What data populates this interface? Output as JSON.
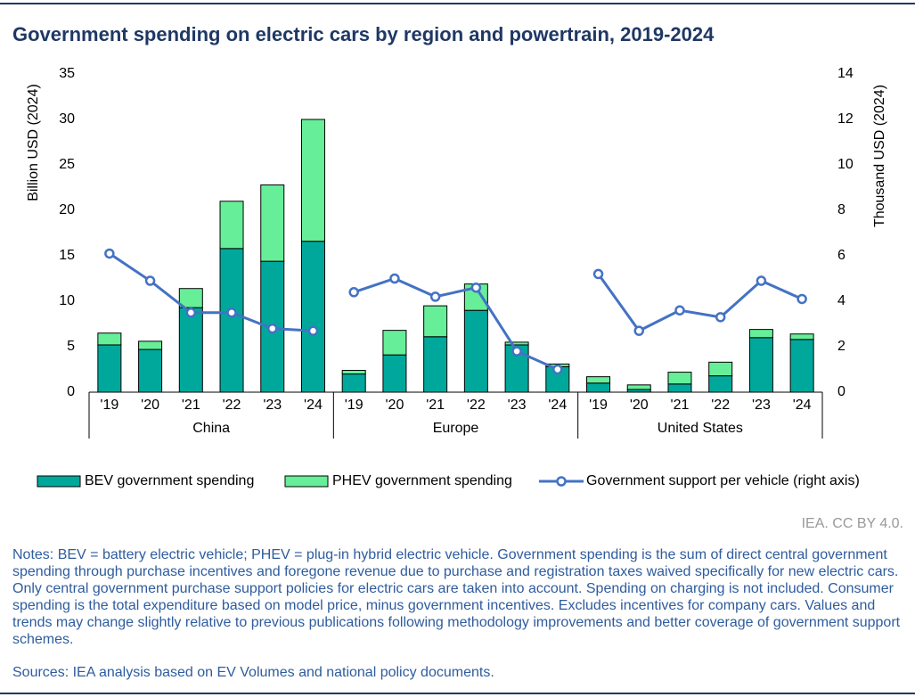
{
  "chart_data": {
    "type": "bar",
    "title": "Government spending on electric cars by region and powertrain, 2019-2024",
    "y_label": "Billion USD (2024)",
    "y2_label": "Thousand USD (2024)",
    "categories": [
      "'19",
      "'20",
      "'21",
      "'22",
      "'23",
      "'24",
      "'19",
      "'20",
      "'21",
      "'22",
      "'23",
      "'24",
      "'19",
      "'20",
      "'21",
      "'22",
      "'23",
      "'24"
    ],
    "groups": [
      "China",
      "Europe",
      "United States"
    ],
    "series": [
      {
        "name": "BEV government spending",
        "type": "bar",
        "color": "#00a89c",
        "values": [
          5.2,
          4.7,
          9.3,
          15.8,
          14.4,
          16.6,
          2.0,
          4.1,
          6.1,
          9.0,
          5.2,
          2.8,
          1.0,
          0.3,
          0.9,
          1.8,
          6.0,
          5.8
        ]
      },
      {
        "name": "PHEV government spending",
        "type": "bar",
        "color": "#66ee99",
        "values": [
          1.3,
          0.9,
          2.1,
          5.2,
          8.4,
          13.4,
          0.4,
          2.7,
          3.4,
          2.9,
          0.3,
          0.3,
          0.7,
          0.5,
          1.3,
          1.5,
          0.9,
          0.6
        ]
      },
      {
        "name": "Government support per vehicle (right axis)",
        "type": "line",
        "axis": "y2",
        "color": "#4472c4",
        "values": [
          6.1,
          4.9,
          3.5,
          3.5,
          2.8,
          2.7,
          4.4,
          5.0,
          4.2,
          4.6,
          1.8,
          1.0,
          5.2,
          2.7,
          3.6,
          3.3,
          4.9,
          4.1
        ]
      }
    ],
    "ylim": [
      0,
      35
    ],
    "yticks": [
      0,
      5,
      10,
      15,
      20,
      25,
      30,
      35
    ],
    "y2lim": [
      0,
      14
    ],
    "y2ticks": [
      0,
      2,
      4,
      6,
      8,
      10,
      12,
      14
    ],
    "legend": "bottom",
    "source": "IEA. CC BY 4.0.",
    "notes": "Notes: BEV = battery electric vehicle; PHEV = plug-in hybrid electric vehicle. Government spending is the sum of direct central government spending through purchase incentives and foregone revenue due to purchase and registration taxes waived specifically for new electric cars. Only central government purchase support policies for electric cars are taken into account. Spending on charging is not included. Consumer spending is the total expenditure based on model price, minus government incentives. Excludes incentives for company cars. Values and trends may change slightly relative to previous publications following methodology improvements and better coverage of government support schemes.",
    "sources": "Sources: IEA analysis based on EV Volumes and national policy documents."
  }
}
